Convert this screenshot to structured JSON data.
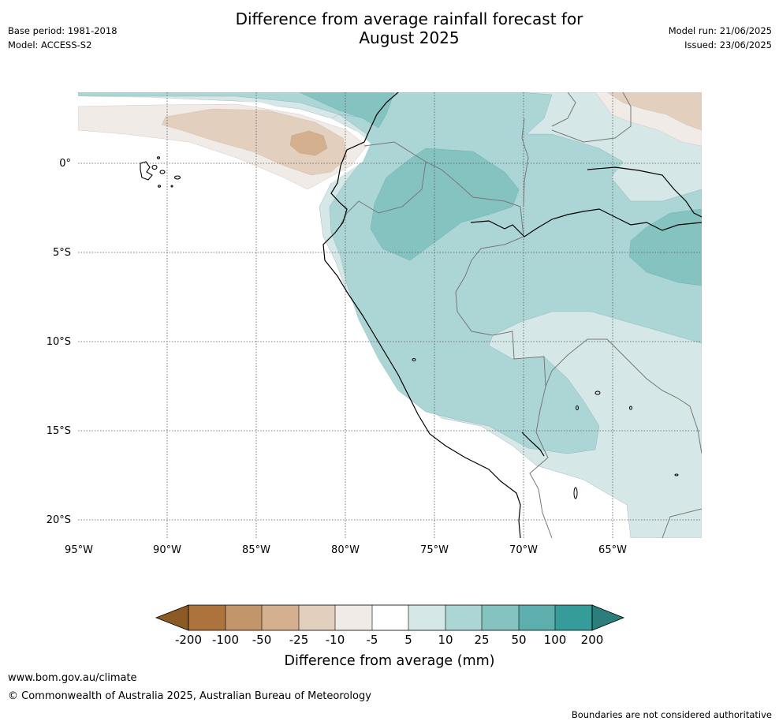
{
  "header": {
    "title_line1": "Difference from average rainfall forecast for",
    "title_line2": "August 2025",
    "base_period": "Base period: 1981-2018",
    "model": "Model: ACCESS-S2",
    "model_run": "Model run: 21/06/2025",
    "issued": "Issued: 23/06/2025"
  },
  "map": {
    "lat_labels": [
      "0°",
      "5°S",
      "10°S",
      "15°S",
      "20°S"
    ],
    "lon_labels": [
      "95°W",
      "90°W",
      "85°W",
      "80°W",
      "75°W",
      "70°W",
      "65°W"
    ]
  },
  "legend": {
    "tick_labels": [
      "-200",
      "-100",
      "-50",
      "-25",
      "-10",
      "-5",
      "5",
      "10",
      "25",
      "50",
      "100",
      "200"
    ],
    "title": "Difference from average (mm)",
    "colors": {
      "lt_-200": "#8c5a24",
      "-200_-100": "#ad733d",
      "-100_-50": "#c3956b",
      "-50_-25": "#d5b08f",
      "-25_-10": "#e2cfbd",
      "-10_-5": "#f1ebe7",
      "-5_5": "#ffffff",
      "5_10": "#d5e8e7",
      "10_25": "#acd6d5",
      "25_50": "#85c3c1",
      "50_100": "#5dafad",
      "100_200": "#359c99",
      "gt_200": "#2c7e7d"
    }
  },
  "footer": {
    "url": "www.bom.gov.au/climate",
    "copyright": "© Commonwealth of Australia 2025, Australian Bureau of Meteorology",
    "note": "Boundaries are not considered authoritative"
  }
}
